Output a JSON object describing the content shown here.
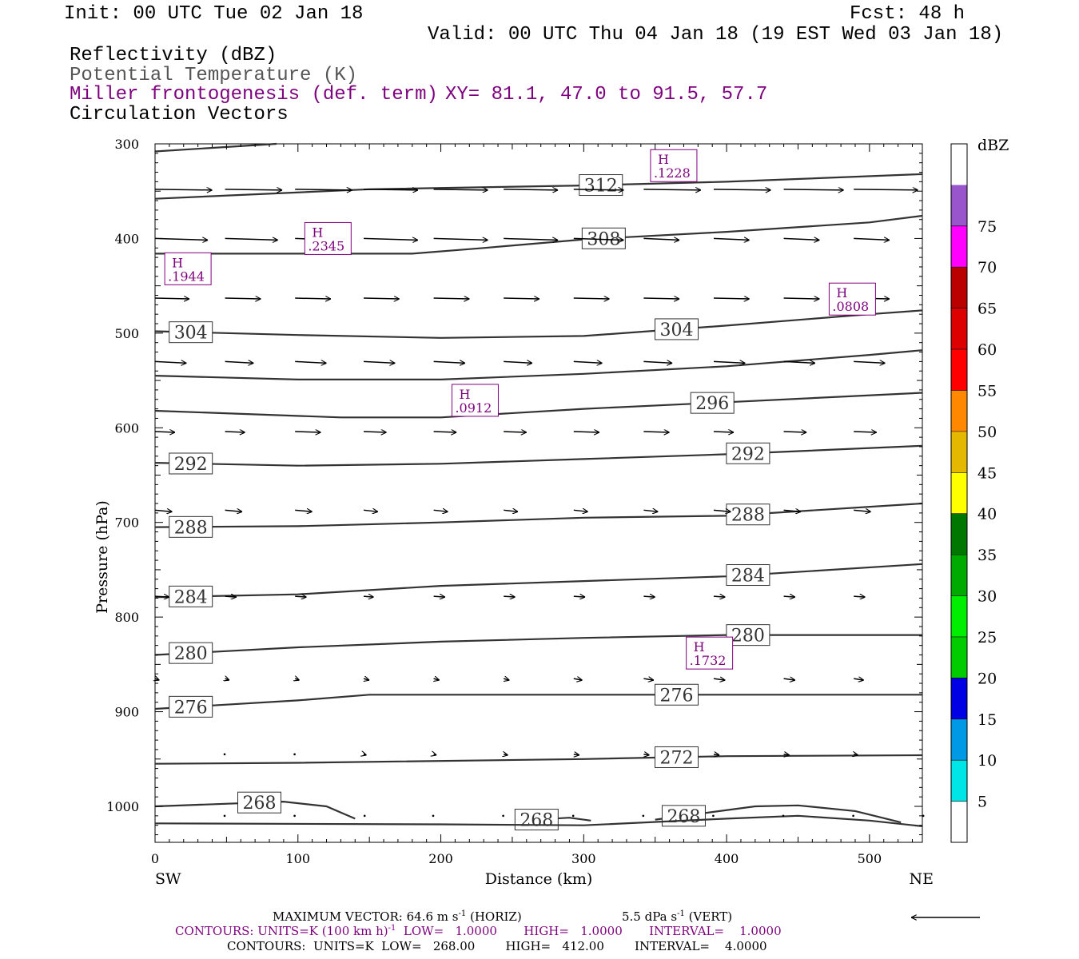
{
  "header": {
    "init": "Init: 00 UTC Tue 02 Jan 18",
    "fcst": "Fcst:   48 h",
    "valid": "Valid: 00 UTC Thu 04 Jan 18 (19 EST Wed 03 Jan 18)",
    "field1": "Reflectivity (dBZ)",
    "field2": "Potential Temperature (K)",
    "field3": "Miller frontogenesis (def. term)",
    "xy": "XY=  81.1, 47.0 to  91.5, 57.7",
    "field4": "Circulation Vectors"
  },
  "footer": {
    "max_vector": "MAXIMUM VECTOR:  64.6 m s",
    "max_vector_sup": "-1",
    "max_vector_tail": " (HORIZ)",
    "vert": "5.5 dPa s",
    "vert_sup": "-1",
    "vert_tail": " (VERT)",
    "contours1": "CONTOURS:  UNITS=K (100 km h)",
    "contours1_sup": "-1",
    "contours1_tail": "  LOW=   1.0000       HIGH=   1.0000       INTERVAL=    1.0000",
    "contours2": "CONTOURS:  UNITS=K  LOW=   268.00        HIGH=   412.00        INTERVAL=    4.0000"
  },
  "chart_data": {
    "type": "cross-section",
    "xlabel": "Distance (km)",
    "ylabel": "Pressure (hPa)",
    "xlim": [
      0,
      537
    ],
    "ylim": [
      1038,
      300
    ],
    "x_ticks": [
      0,
      100,
      200,
      300,
      400,
      500
    ],
    "y_ticks": [
      300,
      400,
      500,
      600,
      700,
      800,
      900,
      1000
    ],
    "left_end_label": "SW",
    "right_end_label": "NE",
    "colorbar": {
      "title": "dBZ",
      "labels": [
        "5",
        "10",
        "15",
        "20",
        "25",
        "30",
        "35",
        "40",
        "45",
        "50",
        "55",
        "60",
        "65",
        "70",
        "75"
      ],
      "colors": [
        "#ffffff",
        "#00e5e5",
        "#0099e5",
        "#0000e5",
        "#00cc00",
        "#00ee00",
        "#00aa00",
        "#007700",
        "#ffff00",
        "#e5b800",
        "#ff8800",
        "#ff0000",
        "#dd0000",
        "#bb0000",
        "#ff00ff",
        "#9955cc",
        "#ffffff"
      ]
    },
    "theta_contours": [
      {
        "label": "",
        "points": [
          [
            0,
            308
          ],
          [
            85,
            300
          ]
        ]
      },
      {
        "label": "312",
        "points": [
          [
            0,
            358
          ],
          [
            150,
            348
          ],
          [
            300,
            344
          ],
          [
            400,
            340
          ],
          [
            537,
            332
          ]
        ]
      },
      {
        "label": "308",
        "points": [
          [
            0,
            416
          ],
          [
            180,
            416
          ],
          [
            230,
            410
          ],
          [
            300,
            401
          ],
          [
            400,
            393
          ],
          [
            500,
            383
          ],
          [
            537,
            376
          ]
        ]
      },
      {
        "label": "304",
        "points": [
          [
            0,
            498
          ],
          [
            100,
            502
          ],
          [
            200,
            505
          ],
          [
            300,
            503
          ],
          [
            400,
            492
          ],
          [
            500,
            480
          ],
          [
            537,
            476
          ]
        ]
      },
      {
        "label": "",
        "points": [
          [
            0,
            545
          ],
          [
            100,
            549
          ],
          [
            200,
            549
          ],
          [
            300,
            543
          ],
          [
            400,
            535
          ],
          [
            500,
            523
          ],
          [
            537,
            518
          ]
        ]
      },
      {
        "label": "296",
        "points": [
          [
            0,
            582
          ],
          [
            130,
            589
          ],
          [
            200,
            589
          ],
          [
            300,
            580
          ],
          [
            400,
            573
          ],
          [
            537,
            563
          ]
        ]
      },
      {
        "label": "292",
        "points": [
          [
            0,
            637
          ],
          [
            100,
            640
          ],
          [
            200,
            638
          ],
          [
            300,
            633
          ],
          [
            400,
            628
          ],
          [
            537,
            619
          ]
        ]
      },
      {
        "label": "288",
        "points": [
          [
            0,
            705
          ],
          [
            100,
            704
          ],
          [
            200,
            700
          ],
          [
            300,
            695
          ],
          [
            400,
            693
          ],
          [
            537,
            680
          ]
        ]
      },
      {
        "label": "284",
        "points": [
          [
            0,
            779
          ],
          [
            100,
            776
          ],
          [
            200,
            767
          ],
          [
            300,
            762
          ],
          [
            400,
            757
          ],
          [
            537,
            744
          ]
        ]
      },
      {
        "label": "280",
        "points": [
          [
            0,
            840
          ],
          [
            100,
            832
          ],
          [
            200,
            826
          ],
          [
            300,
            822
          ],
          [
            400,
            819
          ],
          [
            537,
            819
          ]
        ]
      },
      {
        "label": "276",
        "points": [
          [
            0,
            897
          ],
          [
            100,
            888
          ],
          [
            150,
            882
          ],
          [
            300,
            882
          ],
          [
            400,
            882
          ],
          [
            537,
            882
          ]
        ]
      },
      {
        "label": "272",
        "points": [
          [
            0,
            955
          ],
          [
            100,
            954
          ],
          [
            300,
            950
          ],
          [
            400,
            947
          ],
          [
            537,
            946
          ]
        ]
      },
      {
        "label": "268",
        "points": [
          [
            0,
            1000
          ],
          [
            90,
            995
          ],
          [
            120,
            1000
          ],
          [
            140,
            1013
          ]
        ]
      },
      {
        "label": "268",
        "points": [
          [
            255,
            1015
          ],
          [
            290,
            1012
          ],
          [
            305,
            1015
          ]
        ]
      },
      {
        "label": "268",
        "points": [
          [
            350,
            1014
          ],
          [
            380,
            1008
          ],
          [
            420,
            1000
          ],
          [
            450,
            999
          ],
          [
            490,
            1005
          ],
          [
            522,
            1017
          ]
        ]
      },
      {
        "label": "",
        "points": [
          [
            0,
            1018
          ],
          [
            200,
            1019
          ],
          [
            300,
            1020
          ],
          [
            400,
            1013
          ],
          [
            450,
            1010
          ],
          [
            500,
            1015
          ],
          [
            537,
            1021
          ]
        ]
      }
    ],
    "frontogenesis_maxima": [
      {
        "label": "H",
        "value": ".1228",
        "x": 363,
        "p": 323
      },
      {
        "label": "H",
        "value": ".2345",
        "x": 121,
        "p": 400
      },
      {
        "label": "H",
        "value": ".1944",
        "x": 23,
        "p": 432
      },
      {
        "label": "H",
        "value": ".0808",
        "x": 488,
        "p": 464
      },
      {
        "label": "H",
        "value": ".0912",
        "x": 224,
        "p": 571
      },
      {
        "label": "H",
        "value": ".1732",
        "x": 388,
        "p": 838
      }
    ],
    "vector_rows_hpa": [
      348,
      400,
      463,
      530,
      604,
      687,
      778,
      865,
      945,
      1010
    ],
    "vector_columns_km": [
      0,
      49,
      98,
      146,
      195,
      244,
      293,
      342,
      391,
      440,
      489
    ],
    "vector_lengths_km": [
      [
        40,
        40,
        40,
        38,
        38,
        38,
        35,
        40,
        40,
        42,
        45
      ],
      [
        37,
        37,
        37,
        38,
        38,
        38,
        35,
        25,
        25,
        25,
        25
      ],
      [
        24,
        25,
        25,
        25,
        25,
        25,
        25,
        25,
        25,
        25,
        25
      ],
      [
        22,
        20,
        22,
        22,
        22,
        20,
        20,
        20,
        22,
        22,
        22
      ],
      [
        14,
        14,
        18,
        16,
        16,
        16,
        18,
        18,
        14,
        16,
        16
      ],
      [
        12,
        12,
        12,
        10,
        10,
        10,
        10,
        10,
        12,
        12,
        12
      ],
      [
        10,
        8,
        8,
        7,
        8,
        8,
        8,
        8,
        8,
        8,
        8
      ],
      [
        3,
        3,
        3,
        4,
        4,
        4,
        6,
        7,
        8,
        8,
        7
      ],
      [
        1,
        1,
        1,
        2,
        2,
        3,
        4,
        4,
        4,
        4,
        3
      ],
      [
        1,
        1,
        1,
        1,
        1,
        1,
        1,
        1,
        1,
        1,
        1
      ]
    ],
    "reference_vector": "arrow"
  }
}
